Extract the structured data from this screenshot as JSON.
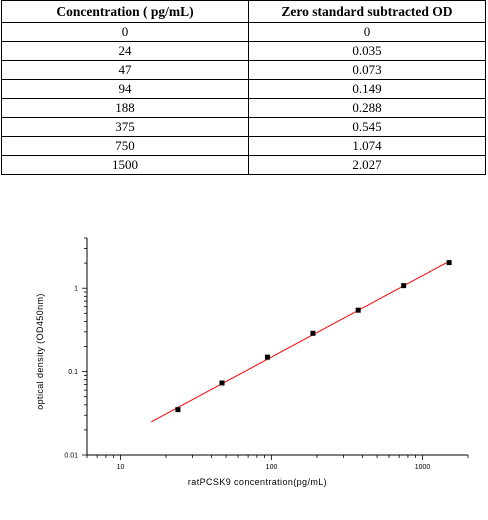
{
  "table": {
    "headers": [
      "Concentration ( pg/mL)",
      "Zero standard subtracted OD"
    ],
    "rows": [
      [
        "0",
        "0"
      ],
      [
        "24",
        "0.035"
      ],
      [
        "47",
        "0.073"
      ],
      [
        "94",
        "0.149"
      ],
      [
        "188",
        "0.288"
      ],
      [
        "375",
        "0.545"
      ],
      [
        "750",
        "1.074"
      ],
      [
        "1500",
        "2.027"
      ]
    ]
  },
  "chart_data": {
    "type": "scatter",
    "xlabel": "ratPCSK9  concentration(pg/mL)",
    "ylabel": "optical density (OD450nm)",
    "x_scale": "log",
    "y_scale": "log",
    "xlim": [
      6,
      2000
    ],
    "ylim": [
      0.01,
      4
    ],
    "x_ticks": [
      10,
      100,
      1000
    ],
    "x_tick_labels": [
      "10",
      "100",
      "1000"
    ],
    "y_ticks": [
      0.01,
      0.1,
      1
    ],
    "y_tick_labels": [
      "0.01",
      "0.1",
      "1"
    ],
    "grid": false,
    "series": [
      {
        "x": [
          24,
          47,
          94,
          188,
          375,
          750,
          1500
        ],
        "y": [
          0.035,
          0.073,
          0.149,
          0.288,
          0.545,
          1.074,
          2.027
        ],
        "color": "#000000"
      }
    ],
    "fit_line": {
      "x": [
        16,
        1500
      ],
      "y": [
        0.025,
        2.1
      ],
      "color": "#ff0000"
    }
  }
}
